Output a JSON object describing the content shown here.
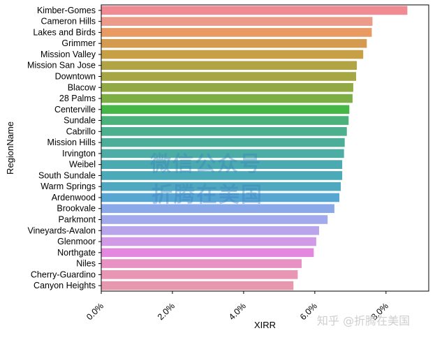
{
  "chart_data": {
    "type": "bar",
    "orientation": "horizontal",
    "xlabel": "XIRR",
    "ylabel": "RegionName",
    "xlim": [
      0,
      0.092
    ],
    "xticks": [
      0.0,
      0.02,
      0.04,
      0.06,
      0.08
    ],
    "xtick_labels": [
      "0.0%",
      "2.0%",
      "4.0%",
      "6.0%",
      "8.0%"
    ],
    "categories": [
      "Kimber-Gomes",
      "Cameron Hills",
      "Lakes and Birds",
      "Grimmer",
      "Mission Valley",
      "Mission San Jose",
      "Downtown",
      "Blacow",
      "28 Palms",
      "Centerville",
      "Sundale",
      "Cabrillo",
      "Mission Hills",
      "Irvington",
      "Weibel",
      "South Sundale",
      "Warm Springs",
      "Ardenwood",
      "Brookvale",
      "Parkmont",
      "Vineyards-Avalon",
      "Glenmoor",
      "Northgate",
      "Niles",
      "Cherry-Guardino",
      "Canyon Heights"
    ],
    "values": [
      0.086,
      0.0762,
      0.076,
      0.0746,
      0.0736,
      0.0718,
      0.0716,
      0.0708,
      0.0706,
      0.0697,
      0.0695,
      0.069,
      0.0684,
      0.0682,
      0.0677,
      0.0677,
      0.0673,
      0.0669,
      0.0655,
      0.0636,
      0.0612,
      0.0604,
      0.0597,
      0.0563,
      0.0552,
      0.054
    ],
    "colors": [
      "#f08b93",
      "#ec9a8a",
      "#e99a62",
      "#d49a50",
      "#c7a046",
      "#b0a444",
      "#a6a744",
      "#93a944",
      "#7cae44",
      "#46b747",
      "#4cb27c",
      "#4cb08e",
      "#4cae99",
      "#4cada4",
      "#4aaab0",
      "#4baab7",
      "#4ea8bf",
      "#56a6d4",
      "#89a9e8",
      "#a2aaec",
      "#b8a5ec",
      "#d19ae6",
      "#e487de",
      "#e891c2",
      "#e995b4",
      "#e898ae"
    ]
  },
  "watermark": {
    "line1": "微信公众号",
    "line2": "折腾在美国",
    "credit": "知乎 @折腾在美国"
  }
}
